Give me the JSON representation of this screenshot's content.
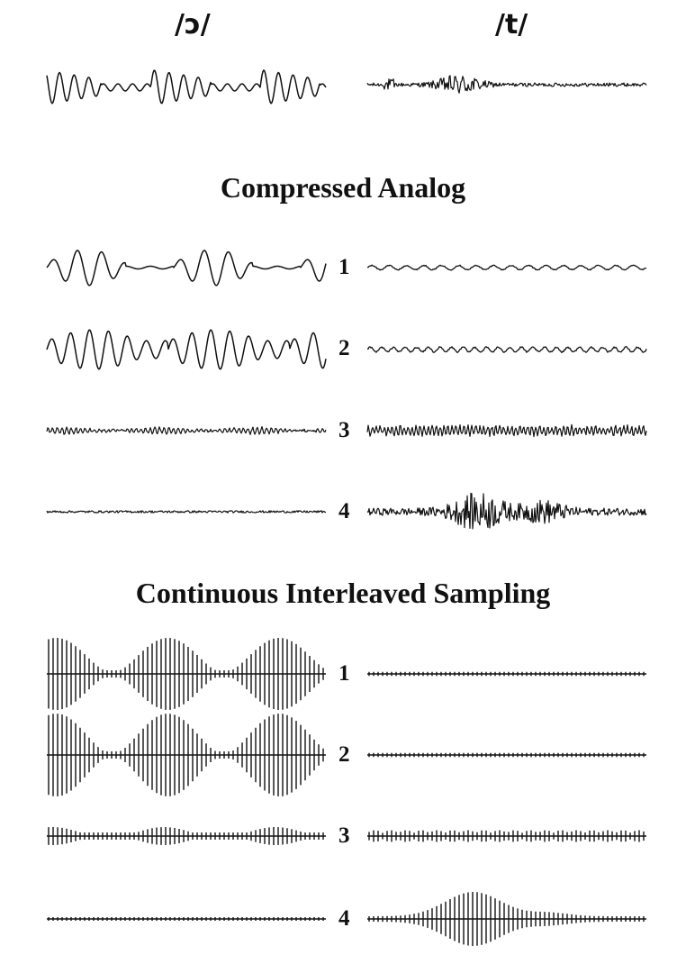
{
  "headers": {
    "vowel": "/ɔ/",
    "consonant": "/t/"
  },
  "sections": {
    "analog_title": "Compressed Analog",
    "cis_title": "Continuous Interleaved Sampling"
  },
  "channel_labels": [
    "1",
    "2",
    "3",
    "4"
  ],
  "waveforms": {
    "original": {
      "vowel": "periodic voiced waveform",
      "consonant": "noise burst"
    },
    "analog": {
      "vowel": [
        "large low-frequency oscillation",
        "large oscillation",
        "small fast ripple",
        "near-flat"
      ],
      "consonant": [
        "small ripple",
        "small ripple",
        "medium fast ripple",
        "large noise burst"
      ]
    },
    "cis": {
      "vowel": [
        "pulse train, large envelope",
        "pulse train, largest envelope",
        "pulse train, small",
        "pulse train, minimal"
      ],
      "consonant": [
        "pulse train, minimal",
        "pulse train, minimal",
        "pulse train, small",
        "pulse train, burst envelope"
      ]
    }
  },
  "colors": {
    "ink": "#111111",
    "background": "#ffffff"
  }
}
